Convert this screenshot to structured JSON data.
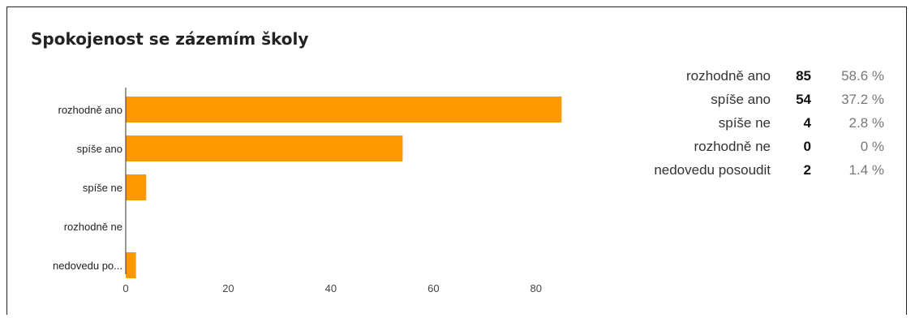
{
  "chart_data": {
    "type": "bar",
    "orientation": "horizontal",
    "title": "Spokojenost se zázemím školy",
    "categories": [
      "rozhodně ano",
      "spíše ano",
      "spíše ne",
      "rozhodně ne",
      "nedovedu posoudit"
    ],
    "category_tick_labels": [
      "rozhodně ano",
      "spíše ano",
      "spíše ne",
      "rozhodně ne",
      "nedovedu po..."
    ],
    "values": [
      85,
      54,
      4,
      0,
      2
    ],
    "xlim": [
      0,
      90
    ],
    "x_ticks": [
      0,
      20,
      40,
      60,
      80
    ],
    "xlabel": "",
    "ylabel": "",
    "grid": false,
    "bar_color": "#FF9900"
  },
  "stats": [
    {
      "label": "rozhodně ano",
      "count": "85",
      "percent": "58.6 %"
    },
    {
      "label": "spíše ano",
      "count": "54",
      "percent": "37.2 %"
    },
    {
      "label": "spíše ne",
      "count": "4",
      "percent": "2.8 %"
    },
    {
      "label": "rozhodně ne",
      "count": "0",
      "percent": "0 %"
    },
    {
      "label": "nedovedu posoudit",
      "count": "2",
      "percent": "1.4 %"
    }
  ]
}
